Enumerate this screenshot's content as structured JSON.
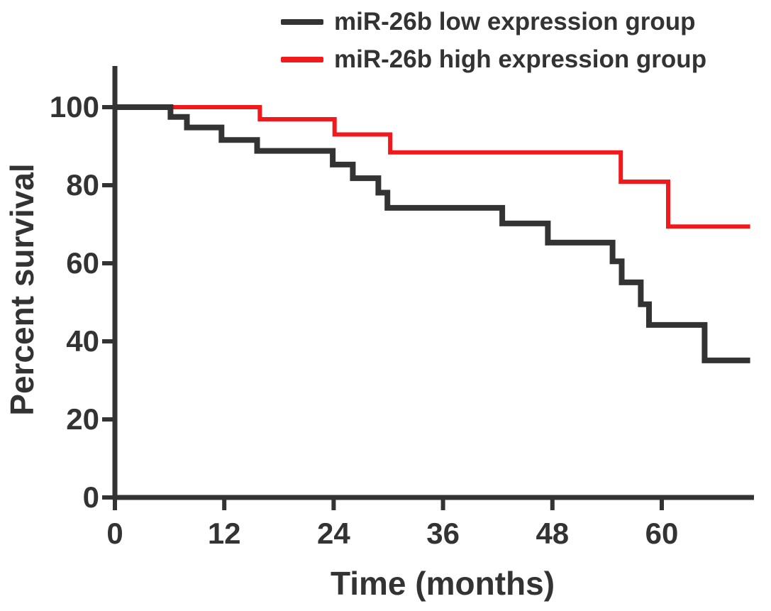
{
  "chart_data": {
    "type": "line",
    "subtype": "kaplan-meier-step",
    "title": "",
    "xlabel": "Time (months)",
    "ylabel": "Percent survival",
    "xlim": [
      0,
      70
    ],
    "ylim": [
      0,
      110
    ],
    "xticks": [
      0,
      12,
      24,
      36,
      48,
      60
    ],
    "yticks": [
      0,
      20,
      40,
      60,
      80,
      100
    ],
    "grid": false,
    "legend_position": "top",
    "axis_color": "#333333",
    "series": [
      {
        "name": "miR-26b low expression group",
        "color": "#333333",
        "start": [
          0,
          100
        ],
        "drops": [
          [
            6.1,
            97.5
          ],
          [
            7.9,
            94.8
          ],
          [
            11.7,
            91.6
          ],
          [
            15.6,
            88.8
          ],
          [
            23.9,
            85.3
          ],
          [
            26.1,
            81.8
          ],
          [
            28.9,
            78.1
          ],
          [
            29.9,
            74.2
          ],
          [
            42.5,
            70.2
          ],
          [
            47.5,
            65.3
          ],
          [
            54.6,
            60.5
          ],
          [
            55.6,
            55.1
          ],
          [
            57.7,
            49.5
          ],
          [
            58.6,
            44.2
          ],
          [
            64.7,
            35.1
          ]
        ],
        "end_time": 69.7,
        "end_value": 35.1
      },
      {
        "name": "miR-26b high expression group",
        "color": "#f2191c",
        "start": [
          0,
          100
        ],
        "drops": [
          [
            15.9,
            96.9
          ],
          [
            24.1,
            93.0
          ],
          [
            30.2,
            88.4
          ],
          [
            55.5,
            80.9
          ],
          [
            60.7,
            69.4
          ]
        ],
        "end_time": 69.7,
        "end_value": 69.4
      }
    ]
  }
}
